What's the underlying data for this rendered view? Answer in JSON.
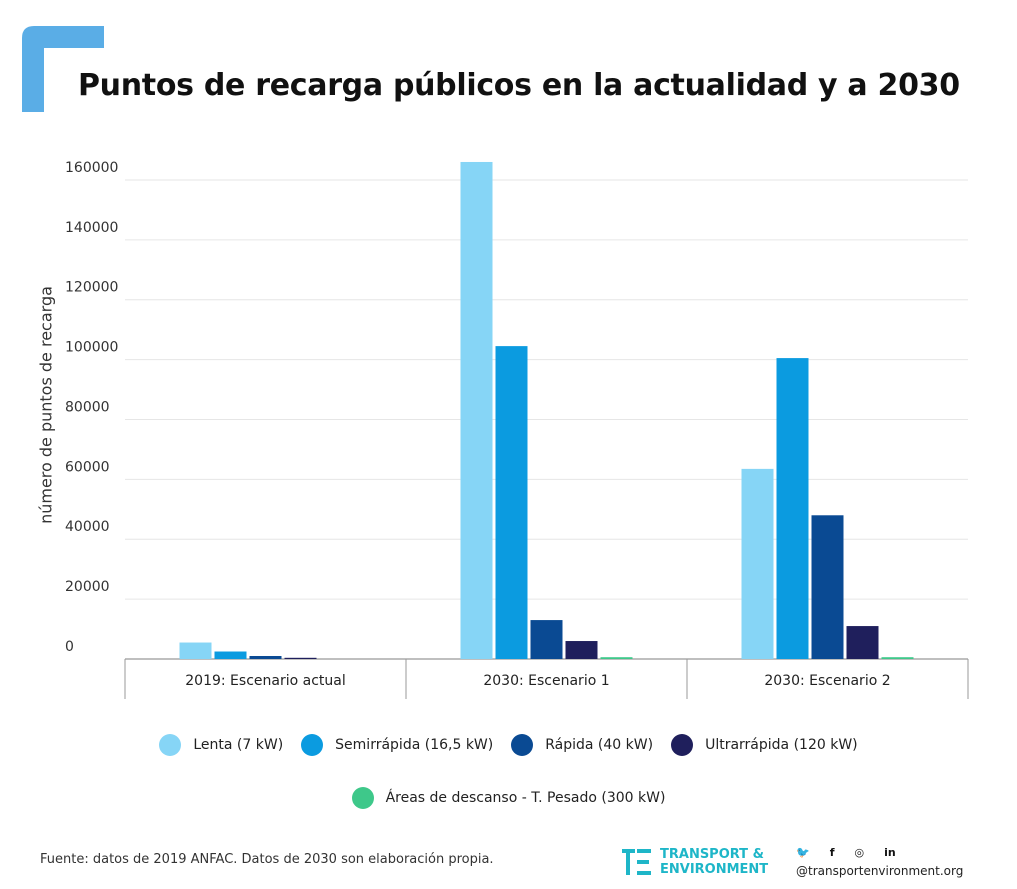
{
  "title": "Puntos de recarga públicos en la actualidad y a 2030",
  "chart_data": {
    "type": "bar",
    "ylabel": "número de puntos de recarga",
    "ylim": [
      0,
      170000
    ],
    "yticks": [
      0,
      20000,
      40000,
      60000,
      80000,
      100000,
      120000,
      140000,
      160000
    ],
    "ytick_labels": [
      "0",
      "20000",
      "40000",
      "60000",
      "80000",
      "100000",
      "120000",
      "140000",
      "160000"
    ],
    "grid": true,
    "legend_position": "bottom",
    "categories": [
      "2019: Escenario actual",
      "2030: Escenario 1",
      "2030: Escenario 2"
    ],
    "series": [
      {
        "name": "Lenta (7 kW)",
        "color": "#86d5f6",
        "values": [
          5500,
          166000,
          63500
        ]
      },
      {
        "name": "Semirrápida (16,5 kW)",
        "color": "#0b9be0",
        "values": [
          2500,
          104500,
          100500
        ]
      },
      {
        "name": "Rápida (40 kW)",
        "color": "#0a4a93",
        "values": [
          1000,
          13000,
          48000
        ]
      },
      {
        "name": "Ultrarrápida (120 kW)",
        "color": "#1f1f5c",
        "values": [
          400,
          6000,
          11000
        ]
      },
      {
        "name": "Áreas de descanso - T. Pesado (300 kW)",
        "color": "#3ec88a",
        "values": [
          0,
          600,
          600
        ]
      }
    ]
  },
  "footer": {
    "source": "Fuente: datos de 2019 ANFAC. Datos de 2030 son elaboración propia.",
    "logo_line1": "TRANSPORT &",
    "logo_line2": "ENVIRONMENT",
    "website": "@transportenvironment.org",
    "brand_color": "#1eb6c8",
    "social_icons": [
      "twitter-icon",
      "facebook-icon",
      "instagram-icon",
      "linkedin-icon"
    ]
  }
}
